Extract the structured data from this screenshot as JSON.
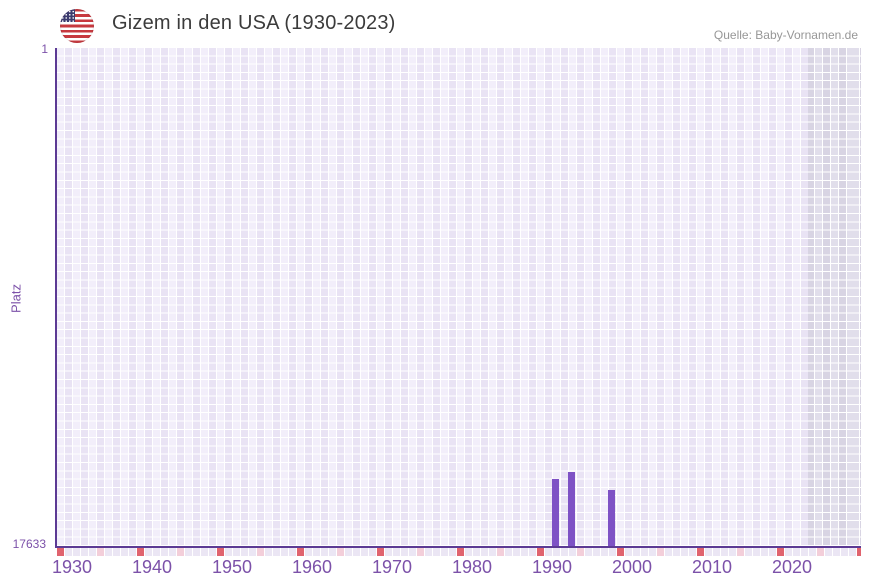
{
  "header": {
    "title": "Gizem in den USA (1930-2023)",
    "source": "Quelle: Baby-Vornamen.de",
    "flag": "us-flag-icon"
  },
  "chart_data": {
    "type": "bar",
    "title": "Gizem in den USA (1930-2023)",
    "source": "Quelle: Baby-Vornamen.de",
    "xlabel": "",
    "ylabel": "Platz",
    "x_ticks": [
      1930,
      1940,
      1950,
      1960,
      1970,
      1980,
      1990,
      2000,
      2010,
      2020
    ],
    "x_range": [
      1928,
      2029
    ],
    "y_axis": {
      "top_label": "1",
      "bottom_label": "17633",
      "min": 1,
      "max": 17633,
      "inverted": true
    },
    "series": [
      {
        "name": "Platz",
        "points": [
          {
            "year": 1990,
            "rank": 15250
          },
          {
            "year": 1992,
            "rank": 15030
          },
          {
            "year": 1997,
            "rank": 15660
          }
        ]
      }
    ],
    "bar_color": "#7e52c5",
    "shaded_region_from": 2022,
    "grid": true,
    "legend": false
  },
  "colors": {
    "axis": "#5c3a94",
    "tick_text": "#7c51a9",
    "bar": "#7e52c5",
    "grid_cell_a": "#f2eefa",
    "grid_cell_b": "#e9e3f4",
    "recent_cell_a": "#e1deeb",
    "recent_cell_b": "#d8d4e3",
    "strip_red": "#e0636e",
    "strip_pink": "#f3ced9",
    "title_text": "#3b3b3b",
    "source_text": "#979797"
  }
}
